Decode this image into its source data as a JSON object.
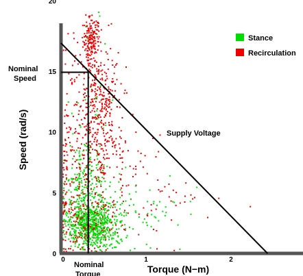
{
  "chart_data": {
    "type": "scatter",
    "xlabel": "Torque (N−m)",
    "ylabel": "Speed (rad/s)",
    "xlim": [
      0,
      2.6
    ],
    "ylim": [
      0,
      20
    ],
    "x_ticks": [
      "0",
      "1",
      "2"
    ],
    "x_tick_values": [
      0,
      1,
      2
    ],
    "y_ticks": [
      "0",
      "5",
      "10",
      "15",
      "20"
    ],
    "y_tick_values": [
      0,
      5,
      10,
      15,
      20
    ],
    "grid": false,
    "legend_position": "top-right",
    "series": [
      {
        "name": "Stance",
        "color": "#00dd00",
        "clusters": [
          {
            "cx": 0.35,
            "cy": 2.3,
            "sx": 0.15,
            "sy": 0.9,
            "n": 650
          },
          {
            "cx": 0.28,
            "cy": 5.5,
            "sx": 0.12,
            "sy": 1.8,
            "n": 230
          },
          {
            "cx": 0.75,
            "cy": 3.0,
            "sx": 0.35,
            "sy": 1.5,
            "n": 110
          },
          {
            "cx": 0.35,
            "cy": 12.0,
            "sx": 0.15,
            "sy": 4.0,
            "n": 30
          }
        ]
      },
      {
        "name": "Recirculation",
        "color": "#ee0000",
        "clusters": [
          {
            "cx": 0.36,
            "cy": 17.5,
            "sx": 0.05,
            "sy": 1.0,
            "n": 170
          },
          {
            "cx": 0.45,
            "cy": 12.5,
            "sx": 0.14,
            "sy": 2.3,
            "n": 320
          },
          {
            "cx": 0.45,
            "cy": 7.5,
            "sx": 0.3,
            "sy": 2.2,
            "n": 220
          },
          {
            "cx": 0.3,
            "cy": 2.3,
            "sx": 0.2,
            "sy": 1.3,
            "n": 170
          },
          {
            "cx": 0.12,
            "cy": 9.0,
            "sx": 0.08,
            "sy": 5.0,
            "n": 70
          },
          {
            "cx": 1.0,
            "cy": 4.0,
            "sx": 0.45,
            "sy": 2.0,
            "n": 45
          }
        ]
      }
    ],
    "supply_voltage_line": {
      "x": [
        0,
        2.43
      ],
      "y": [
        17.3,
        0
      ]
    },
    "nominal_point": {
      "torque": 0.32,
      "speed": 14.9
    },
    "annotations": {
      "supply_voltage": "Supply Voltage",
      "nominal_speed_line1": "Nominal",
      "nominal_speed_line2": "Speed",
      "nominal_torque_line1": "Nominal",
      "nominal_torque_line2": "Torque"
    }
  }
}
